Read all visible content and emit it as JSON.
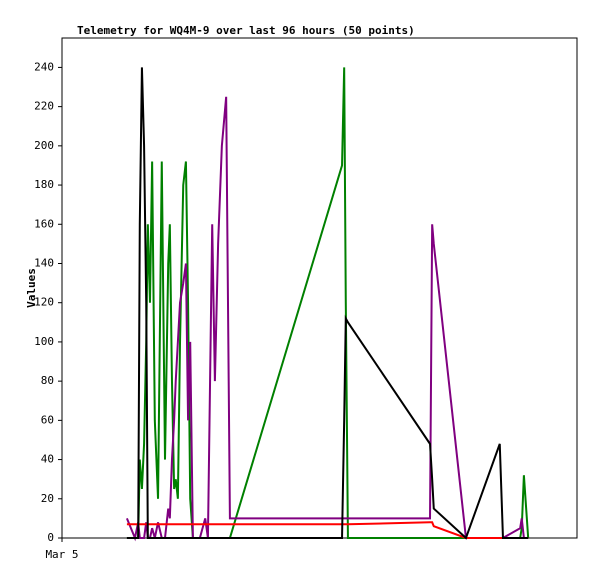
{
  "chart_data": {
    "type": "line",
    "title": "Telemetry for WQ4M-9 over last 96 hours (50 points)",
    "y_label": "Values",
    "x": [
      12.1,
      13.6,
      14.2,
      14.5,
      14.9,
      15.3,
      15.7,
      16.0,
      16.4,
      16.8,
      17.3,
      17.9,
      18.6,
      19.2,
      19.8,
      20.1,
      20.5,
      20.9,
      21.2,
      21.6,
      22.0,
      22.6,
      23.1,
      23.5,
      23.9,
      24.4,
      25.0,
      25.7,
      26.7,
      27.2,
      28.0,
      28.5,
      29.1,
      29.8,
      30.6,
      31.3,
      52.2,
      52.6,
      52.9,
      53.3,
      68.6,
      69.0,
      69.3,
      75.3,
      81.6,
      82.2,
      85.4,
      85.7,
      86.1,
      86.9
    ],
    "xlim": [
      0,
      96
    ],
    "xticks": [
      {
        "value": 0,
        "label": "Mar 5"
      }
    ],
    "ylim": [
      0,
      255
    ],
    "yticks": [
      0,
      20,
      40,
      60,
      80,
      100,
      120,
      140,
      160,
      180,
      200,
      220,
      240
    ],
    "series": [
      {
        "color": "#008000",
        "values": [
          0,
          0,
          0,
          40,
          25,
          48,
          100,
          160,
          120,
          192,
          60,
          20,
          192,
          40,
          140,
          160,
          80,
          25,
          30,
          20,
          100,
          180,
          192,
          120,
          20,
          0,
          0,
          0,
          0,
          0,
          0,
          0,
          0,
          0,
          0,
          0,
          190,
          240,
          120,
          0,
          0,
          0,
          0,
          0,
          0,
          0,
          0,
          5,
          32,
          0
        ]
      },
      {
        "color": "#800080",
        "values": [
          10,
          0,
          8,
          0,
          0,
          0,
          8,
          0,
          0,
          5,
          0,
          8,
          0,
          0,
          15,
          10,
          40,
          60,
          80,
          100,
          120,
          130,
          140,
          60,
          100,
          0,
          0,
          0,
          10,
          0,
          160,
          80,
          150,
          200,
          225,
          10,
          10,
          10,
          10,
          10,
          10,
          160,
          150,
          0,
          0,
          0,
          5,
          10,
          0,
          0
        ]
      },
      {
        "color": "#ff0000",
        "values": [
          7,
          7,
          7,
          7,
          7,
          7,
          7,
          7,
          7,
          7,
          7,
          7,
          7,
          7,
          7,
          7,
          7,
          7,
          7,
          7,
          7,
          7,
          7,
          7,
          7,
          7,
          7,
          7,
          7,
          7,
          7,
          7,
          7,
          7,
          7,
          7,
          7,
          7,
          7,
          7,
          8,
          8,
          6,
          0,
          0,
          0,
          0,
          0,
          0,
          0
        ]
      },
      {
        "color": "#000000",
        "values": [
          0,
          0,
          0,
          160,
          240,
          200,
          120,
          0,
          0,
          0,
          0,
          0,
          0,
          0,
          0,
          0,
          0,
          0,
          0,
          0,
          0,
          0,
          0,
          0,
          0,
          0,
          0,
          0,
          0,
          0,
          0,
          0,
          0,
          0,
          0,
          0,
          0,
          60,
          112,
          110,
          48,
          30,
          15,
          0,
          48,
          0,
          0,
          0,
          0,
          0
        ]
      }
    ]
  }
}
